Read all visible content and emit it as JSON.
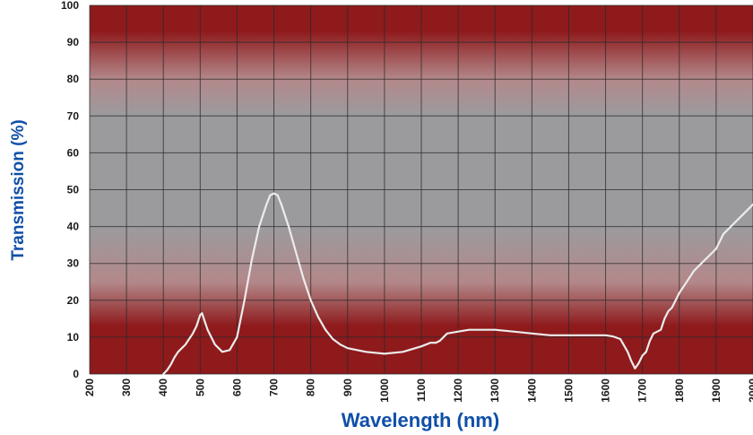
{
  "chart_data": {
    "type": "line",
    "title": "",
    "xlabel": "Wavelength (nm)",
    "ylabel": "Transmission (%)",
    "xlim": [
      200,
      2000
    ],
    "ylim": [
      0,
      100
    ],
    "xticks": [
      200,
      300,
      400,
      500,
      600,
      700,
      800,
      900,
      1000,
      1100,
      1200,
      1300,
      1400,
      1500,
      1600,
      1700,
      1800,
      1900,
      2000
    ],
    "yticks": [
      0,
      10,
      20,
      30,
      40,
      50,
      60,
      70,
      80,
      90,
      100
    ],
    "grid": true,
    "colors": {
      "band_outer": "#8e1a1c",
      "band_mid": "#b3888a",
      "band_center": "#9b9b9e",
      "grid": "#2a2a2a",
      "line": "#ececec",
      "axis_title": "#0f4fa8"
    },
    "series": [
      {
        "x": [
          400,
          410,
          420,
          430,
          440,
          460,
          480,
          490,
          500,
          505,
          510,
          520,
          540,
          560,
          580,
          600,
          620,
          640,
          660,
          680,
          690,
          700,
          710,
          720,
          740,
          760,
          780,
          800,
          820,
          840,
          860,
          880,
          900,
          950,
          1000,
          1050,
          1100,
          1125,
          1140,
          1150,
          1170,
          1200,
          1230,
          1300,
          1350,
          1400,
          1450,
          1500,
          1550,
          1600,
          1620,
          1640,
          1660,
          1670,
          1680,
          1690,
          1700,
          1710,
          1720,
          1730,
          1750,
          1760,
          1770,
          1780,
          1800,
          1820,
          1840,
          1860,
          1880,
          1900,
          1920,
          1950,
          1980,
          2000
        ],
        "y": [
          0,
          1,
          2.5,
          4.5,
          6,
          8,
          11,
          13,
          16,
          16.5,
          15,
          12,
          8,
          6,
          6.5,
          10,
          20,
          31,
          40,
          46,
          48.5,
          49,
          48.5,
          46,
          40,
          33,
          26,
          20,
          15.5,
          12,
          9.5,
          8,
          7,
          6,
          5.5,
          6,
          7.5,
          8.5,
          8.5,
          9,
          11,
          11.5,
          12,
          12,
          11.5,
          11,
          10.5,
          10.5,
          10.5,
          10.5,
          10.2,
          9.5,
          6,
          3.5,
          1.5,
          3,
          5,
          6,
          9,
          11,
          12,
          15,
          17,
          18,
          22,
          25,
          28,
          30,
          32,
          34,
          38,
          41,
          44,
          46
        ]
      }
    ]
  }
}
